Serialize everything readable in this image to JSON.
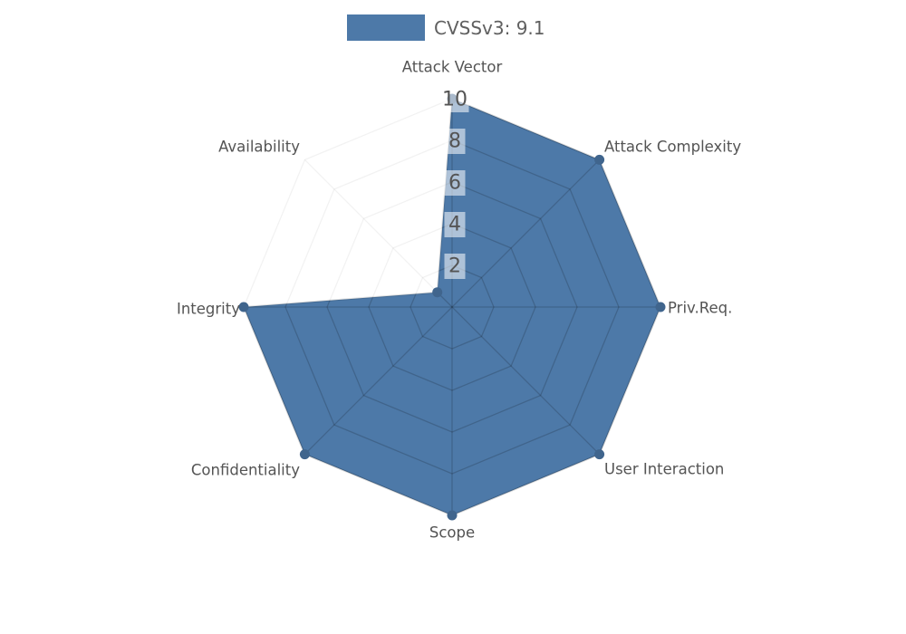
{
  "legend": {
    "label": "CVSSv3: 9.1",
    "swatch_color": "#4d79a8"
  },
  "chart_data": {
    "type": "radar",
    "categories": [
      "Attack Vector",
      "Attack Complexity",
      "Priv.Req.",
      "User Interaction",
      "Scope",
      "Confidentiality",
      "Integrity",
      "Availability"
    ],
    "series": [
      {
        "name": "CVSSv3: 9.1",
        "values": [
          10,
          10,
          10,
          10,
          10,
          10,
          10,
          1
        ],
        "color": "#4d79a8"
      }
    ],
    "radial_ticks": [
      "2",
      "4",
      "6",
      "8",
      "10"
    ],
    "radial_tick_values": [
      2,
      4,
      6,
      8,
      10
    ],
    "rmax": 10,
    "grid": "on",
    "legend_position": "top-center"
  },
  "colors": {
    "fill": "#4d79a8",
    "marker": "#40658d",
    "grid_inside_fill": "rgba(0,0,0,0.17)",
    "grid_outside": "rgba(0,0,0,0.05)",
    "axis_label": "#545454",
    "tick_text": "#545454",
    "tick_box": "rgba(255,255,255,0.55)",
    "background": "#ffffff"
  }
}
